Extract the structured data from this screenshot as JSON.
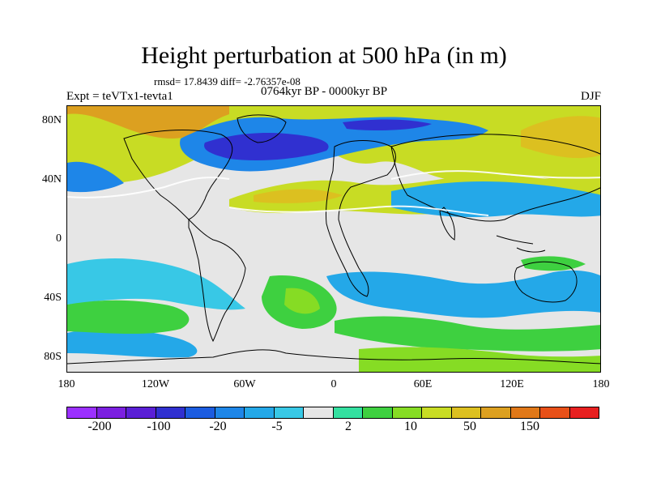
{
  "title": "Height perturbation at 500 hPa (in m)",
  "stats": "rmsd= 17.8439  diff= -2.76357e-08",
  "expt": "Expt = teVTx1-tevta1",
  "period": "0764kyr BP - 0000kyr BP",
  "season": "DJF",
  "y_axis_labels": [
    "80N",
    "40N",
    "0",
    "40S",
    "80S"
  ],
  "x_axis_labels": [
    "180",
    "120W",
    "60W",
    "0",
    "60E",
    "120E",
    "180"
  ],
  "colorbar": {
    "colors": [
      "#9b30ff",
      "#7b1fe0",
      "#5a1fd6",
      "#3030d0",
      "#1c5ce0",
      "#1e86e8",
      "#24a8e8",
      "#38c8e6",
      "#e6e6e6",
      "#34e0a0",
      "#3ed040",
      "#86dc24",
      "#c8dc24",
      "#dcc020",
      "#dca020",
      "#e07818",
      "#e85018",
      "#e82020"
    ],
    "labels": [
      "-200",
      "-100",
      "-20",
      "-5",
      "2",
      "10",
      "50",
      "150"
    ]
  },
  "legend_colors": {
    "neutral": "#e6e6e6",
    "positive_low": "#34e0a0",
    "positive_mid": "#86dc24",
    "positive_high": "#dca020",
    "negative_low": "#38c8e6",
    "negative_mid": "#1e86e8",
    "negative_high": "#3030d0"
  }
}
